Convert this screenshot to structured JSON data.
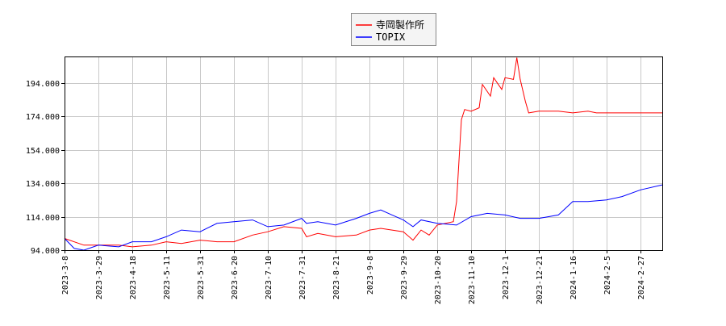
{
  "chart_data": {
    "type": "line",
    "title": "",
    "xlabel": "",
    "ylabel": "",
    "ylim": [
      94,
      210
    ],
    "xlim": [
      "2023-3-8",
      "2024-3-11"
    ],
    "grid": true,
    "legend_placement": "top-center",
    "y_ticks": [
      "94.000",
      "114.000",
      "134.000",
      "154.000",
      "174.000",
      "194.000"
    ],
    "x_ticks": [
      "2023-3-8",
      "2023-3-29",
      "2023-4-18",
      "2023-5-11",
      "2023-5-31",
      "2023-6-20",
      "2023-7-10",
      "2023-7-31",
      "2023-8-21",
      "2023-9-8",
      "2023-9-29",
      "2023-10-20",
      "2023-11-10",
      "2023-12-1",
      "2023-12-21",
      "2024-1-16",
      "2024-2-5",
      "2024-2-27"
    ],
    "series": [
      {
        "name": "寺岡製作所",
        "color": "#ff0000",
        "points": [
          [
            "2023-3-8",
            101
          ],
          [
            "2023-3-20",
            97
          ],
          [
            "2023-3-29",
            97
          ],
          [
            "2023-4-10",
            97
          ],
          [
            "2023-4-18",
            96
          ],
          [
            "2023-5-1",
            97
          ],
          [
            "2023-5-11",
            99
          ],
          [
            "2023-5-20",
            98
          ],
          [
            "2023-5-31",
            100
          ],
          [
            "2023-6-10",
            99
          ],
          [
            "2023-6-20",
            99
          ],
          [
            "2023-7-1",
            103
          ],
          [
            "2023-7-10",
            105
          ],
          [
            "2023-7-20",
            108
          ],
          [
            "2023-7-31",
            107
          ],
          [
            "2023-8-3",
            102
          ],
          [
            "2023-8-10",
            104
          ],
          [
            "2023-8-21",
            102
          ],
          [
            "2023-9-1",
            103
          ],
          [
            "2023-9-8",
            106
          ],
          [
            "2023-9-15",
            107
          ],
          [
            "2023-9-29",
            105
          ],
          [
            "2023-10-5",
            100
          ],
          [
            "2023-10-10",
            106
          ],
          [
            "2023-10-15",
            103
          ],
          [
            "2023-10-20",
            109
          ],
          [
            "2023-10-30",
            111
          ],
          [
            "2023-11-1",
            123
          ],
          [
            "2023-11-4",
            172
          ],
          [
            "2023-11-6",
            178
          ],
          [
            "2023-11-10",
            177
          ],
          [
            "2023-11-15",
            179
          ],
          [
            "2023-11-17",
            193
          ],
          [
            "2023-11-22",
            186
          ],
          [
            "2023-11-24",
            197
          ],
          [
            "2023-11-29",
            190
          ],
          [
            "2023-12-1",
            197
          ],
          [
            "2023-12-6",
            196
          ],
          [
            "2023-12-8",
            209
          ],
          [
            "2023-12-10",
            196
          ],
          [
            "2023-12-13",
            183
          ],
          [
            "2023-12-15",
            176
          ],
          [
            "2023-12-21",
            177
          ],
          [
            "2024-1-5",
            177
          ],
          [
            "2024-1-16",
            176
          ],
          [
            "2024-1-25",
            177
          ],
          [
            "2024-1-30",
            176
          ],
          [
            "2024-2-27",
            176
          ],
          [
            "2024-3-11",
            176
          ]
        ]
      },
      {
        "name": "TOPIX",
        "color": "#0000ff",
        "points": [
          [
            "2023-3-8",
            101
          ],
          [
            "2023-3-14",
            95
          ],
          [
            "2023-3-20",
            94
          ],
          [
            "2023-3-29",
            97
          ],
          [
            "2023-4-10",
            96
          ],
          [
            "2023-4-18",
            99
          ],
          [
            "2023-5-1",
            99
          ],
          [
            "2023-5-11",
            102
          ],
          [
            "2023-5-20",
            106
          ],
          [
            "2023-5-31",
            105
          ],
          [
            "2023-6-10",
            110
          ],
          [
            "2023-6-20",
            111
          ],
          [
            "2023-7-1",
            112
          ],
          [
            "2023-7-10",
            108
          ],
          [
            "2023-7-20",
            109
          ],
          [
            "2023-7-31",
            113
          ],
          [
            "2023-8-3",
            110
          ],
          [
            "2023-8-10",
            111
          ],
          [
            "2023-8-21",
            109
          ],
          [
            "2023-9-1",
            113
          ],
          [
            "2023-9-8",
            116
          ],
          [
            "2023-9-15",
            118
          ],
          [
            "2023-9-22",
            115
          ],
          [
            "2023-9-29",
            112
          ],
          [
            "2023-10-5",
            108
          ],
          [
            "2023-10-10",
            112
          ],
          [
            "2023-10-20",
            110
          ],
          [
            "2023-11-1",
            109
          ],
          [
            "2023-11-10",
            114
          ],
          [
            "2023-11-20",
            116
          ],
          [
            "2023-12-1",
            115
          ],
          [
            "2023-12-10",
            113
          ],
          [
            "2023-12-21",
            113
          ],
          [
            "2024-1-5",
            115
          ],
          [
            "2024-1-16",
            123
          ],
          [
            "2024-1-25",
            123
          ],
          [
            "2024-2-5",
            124
          ],
          [
            "2024-2-15",
            126
          ],
          [
            "2024-2-27",
            130
          ],
          [
            "2024-3-11",
            133
          ]
        ]
      }
    ]
  }
}
